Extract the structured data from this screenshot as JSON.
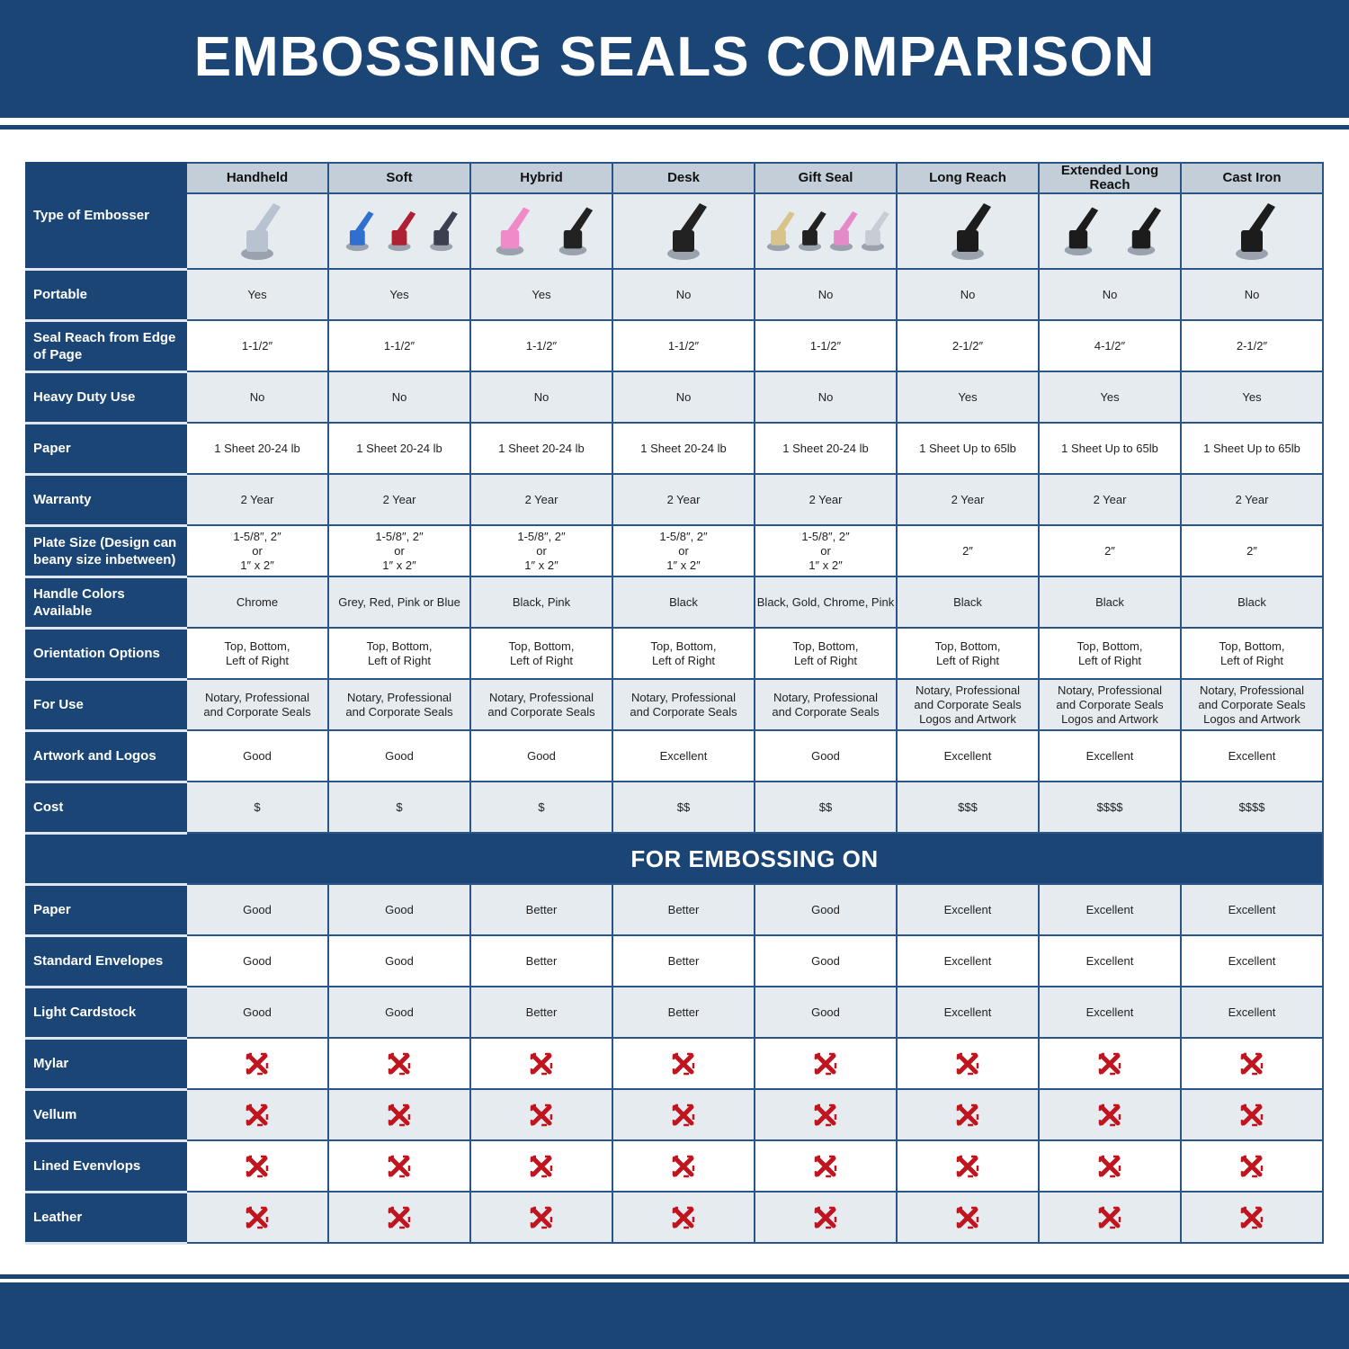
{
  "title": "EMBOSSING SEALS COMPARISON",
  "corner_label": "Type of Embosser",
  "columns": [
    "Handheld",
    "Soft",
    "Hybrid",
    "Desk",
    "Gift Seal",
    "Long Reach",
    "Extended Long Reach",
    "Cast Iron"
  ],
  "column_images": [
    {
      "icon": "chrome-handheld-embosser-image",
      "colors": [
        "#b8c2d0"
      ]
    },
    {
      "icon": "soft-embossers-image",
      "colors": [
        "#2f6fd0",
        "#b02035",
        "#3a4050"
      ]
    },
    {
      "icon": "hybrid-embossers-image",
      "colors": [
        "#f08ac8",
        "#222"
      ]
    },
    {
      "icon": "desk-embosser-image",
      "colors": [
        "#222"
      ]
    },
    {
      "icon": "gift-seal-embossers-image",
      "colors": [
        "#d8c488",
        "#222",
        "#e58ac8",
        "#c8ccd4"
      ]
    },
    {
      "icon": "long-reach-embosser-image",
      "colors": [
        "#1c1c1c"
      ]
    },
    {
      "icon": "extended-long-reach-embossers-image",
      "colors": [
        "#1c1c1c",
        "#1c1c1c"
      ]
    },
    {
      "icon": "cast-iron-embosser-image",
      "colors": [
        "#1c1c1c"
      ]
    }
  ],
  "rows": [
    {
      "label": "Portable",
      "values": [
        "Yes",
        "Yes",
        "Yes",
        "No",
        "No",
        "No",
        "No",
        "No"
      ]
    },
    {
      "label": "Seal Reach from Edge of Page",
      "values": [
        "1-1/2″",
        "1-1/2″",
        "1-1/2″",
        "1-1/2″",
        "1-1/2″",
        "2-1/2″",
        "4-1/2″",
        "2-1/2″"
      ]
    },
    {
      "label": "Heavy Duty Use",
      "values": [
        "No",
        "No",
        "No",
        "No",
        "No",
        "Yes",
        "Yes",
        "Yes"
      ]
    },
    {
      "label": "Paper",
      "values": [
        "1 Sheet 20-24 lb",
        "1 Sheet 20-24 lb",
        "1 Sheet 20-24 lb",
        "1 Sheet 20-24 lb",
        "1 Sheet 20-24 lb",
        "1 Sheet Up to 65lb",
        "1 Sheet Up to 65lb",
        "1 Sheet Up to 65lb"
      ]
    },
    {
      "label": "Warranty",
      "values": [
        "2 Year",
        "2 Year",
        "2 Year",
        "2 Year",
        "2 Year",
        "2 Year",
        "2 Year",
        "2 Year"
      ]
    },
    {
      "label": "Plate Size (Design can beany size inbetween)",
      "values": [
        "1-5/8″, 2″\nor\n1″ x 2″",
        "1-5/8″, 2″\nor\n1″ x 2″",
        "1-5/8″, 2″\nor\n1″ x 2″",
        "1-5/8″, 2″\nor\n1″ x 2″",
        "1-5/8″, 2″\nor\n1″ x 2″",
        "2″",
        "2″",
        "2″"
      ]
    },
    {
      "label": "Handle Colors Available",
      "values": [
        "Chrome",
        "Grey, Red, Pink or Blue",
        "Black, Pink",
        "Black",
        "Black, Gold, Chrome, Pink",
        "Black",
        "Black",
        "Black"
      ]
    },
    {
      "label": "Orientation Options",
      "values": [
        "Top, Bottom,\nLeft of Right",
        "Top, Bottom,\nLeft of Right",
        "Top, Bottom,\nLeft of Right",
        "Top, Bottom,\nLeft of Right",
        "Top, Bottom,\nLeft of Right",
        "Top, Bottom,\nLeft of Right",
        "Top, Bottom,\nLeft of Right",
        "Top, Bottom,\nLeft of Right"
      ]
    },
    {
      "label": "For Use",
      "values": [
        "Notary, Professional\nand Corporate Seals",
        "Notary, Professional\nand Corporate Seals",
        "Notary, Professional\nand Corporate Seals",
        "Notary, Professional\nand Corporate Seals",
        "Notary, Professional\nand Corporate Seals",
        "Notary, Professional\nand Corporate Seals\nLogos and Artwork",
        "Notary, Professional\nand Corporate Seals\nLogos and Artwork",
        "Notary, Professional\nand Corporate Seals\nLogos and Artwork"
      ]
    },
    {
      "label": "Artwork and Logos",
      "values": [
        "Good",
        "Good",
        "Good",
        "Excellent",
        "Good",
        "Excellent",
        "Excellent",
        "Excellent"
      ]
    },
    {
      "label": "Cost",
      "values": [
        "$",
        "$",
        "$",
        "$$",
        "$$",
        "$$$",
        "$$$$",
        "$$$$"
      ]
    }
  ],
  "section_title": "FOR EMBOSSING ON",
  "embossing_rows": [
    {
      "label": "Paper",
      "values": [
        "Good",
        "Good",
        "Better",
        "Better",
        "Good",
        "Excellent",
        "Excellent",
        "Excellent"
      ]
    },
    {
      "label": "Standard Envelopes",
      "values": [
        "Good",
        "Good",
        "Better",
        "Better",
        "Good",
        "Excellent",
        "Excellent",
        "Excellent"
      ]
    },
    {
      "label": "Light Cardstock",
      "values": [
        "Good",
        "Good",
        "Better",
        "Better",
        "Good",
        "Excellent",
        "Excellent",
        "Excellent"
      ]
    },
    {
      "label": "Mylar",
      "values": [
        "x",
        "x",
        "x",
        "x",
        "x",
        "x",
        "x",
        "x"
      ]
    },
    {
      "label": "Vellum",
      "values": [
        "x",
        "x",
        "x",
        "x",
        "x",
        "x",
        "x",
        "x"
      ]
    },
    {
      "label": "Lined Evenvlops",
      "values": [
        "x",
        "x",
        "x",
        "x",
        "x",
        "x",
        "x",
        "x"
      ]
    },
    {
      "label": "Leather",
      "values": [
        "x",
        "x",
        "x",
        "x",
        "x",
        "x",
        "x",
        "x"
      ]
    }
  ],
  "colors": {
    "navy": "#1a4575",
    "header_grey": "#c3ced9",
    "row_grey": "#e6ebf0",
    "x_red": "#c0141e"
  }
}
